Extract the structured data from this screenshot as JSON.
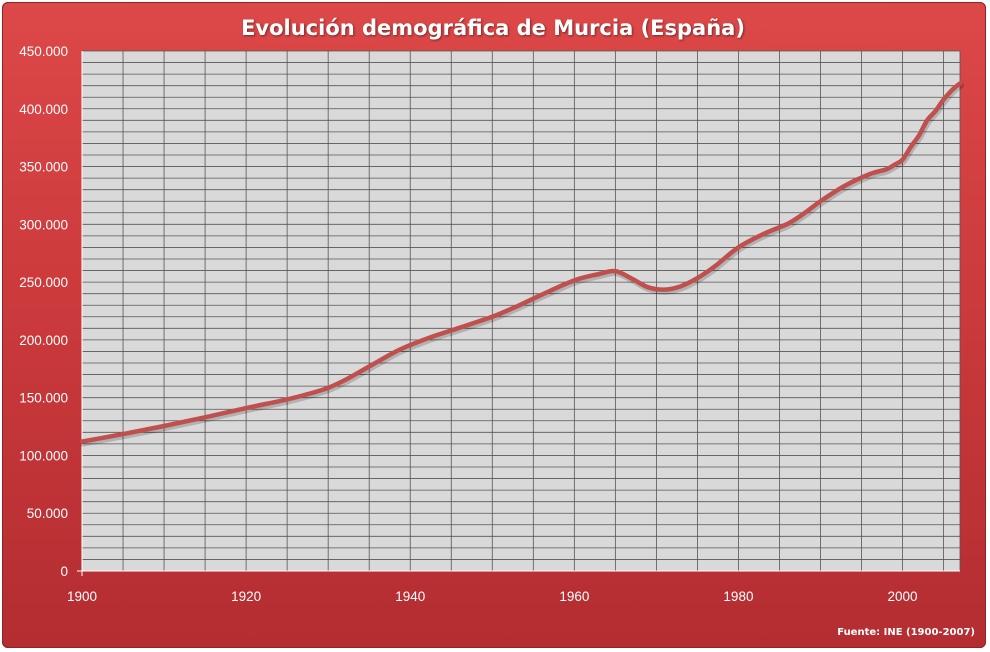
{
  "chart_data": {
    "type": "line",
    "title": "Evolución demográfica de Murcia (España)",
    "source": "Fuente: INE (1900-2007)",
    "xlabel": "",
    "ylabel": "",
    "xlim": [
      1900,
      2007
    ],
    "ylim": [
      0,
      450000
    ],
    "x_ticks": [
      1900,
      1920,
      1940,
      1960,
      1980,
      2000
    ],
    "x_tick_labels": [
      "1900",
      "1920",
      "1940",
      "1960",
      "1980",
      "2000"
    ],
    "y_ticks": [
      0,
      50000,
      100000,
      150000,
      200000,
      250000,
      300000,
      350000,
      400000,
      450000
    ],
    "y_tick_labels": [
      "0",
      "50.000",
      "100.000",
      "150.000",
      "200.000",
      "250.000",
      "300.000",
      "350.000",
      "400.000",
      "450.000"
    ],
    "grid": true,
    "legend": "none",
    "colors": {
      "line": "#c0504d",
      "plot_background": "#d9d9d9",
      "grid": "#555555",
      "frame": "#d23f41"
    },
    "series": [
      {
        "x": [
          1900,
          1905,
          1910,
          1915,
          1920,
          1925,
          1928,
          1930,
          1932,
          1935,
          1938,
          1940,
          1943,
          1946,
          1950,
          1953,
          1956,
          1960,
          1963,
          1965,
          1967,
          1969,
          1971,
          1973,
          1975,
          1977,
          1980,
          1983,
          1986,
          1988,
          1990,
          1993,
          1996,
          1998,
          1999,
          2000,
          2001,
          2002,
          2003,
          2004,
          2005,
          2006,
          2007
        ],
        "y": [
          112000,
          118500,
          125500,
          133000,
          141000,
          148500,
          154000,
          158500,
          165000,
          177000,
          189000,
          195500,
          203500,
          210500,
          220000,
          229000,
          239000,
          251500,
          257000,
          259500,
          253000,
          245500,
          243500,
          246500,
          253500,
          263000,
          280000,
          291500,
          300500,
          309500,
          320000,
          333500,
          343500,
          347500,
          351500,
          356000,
          367000,
          377000,
          390000,
          398000,
          408000,
          416000,
          422000
        ]
      }
    ]
  }
}
